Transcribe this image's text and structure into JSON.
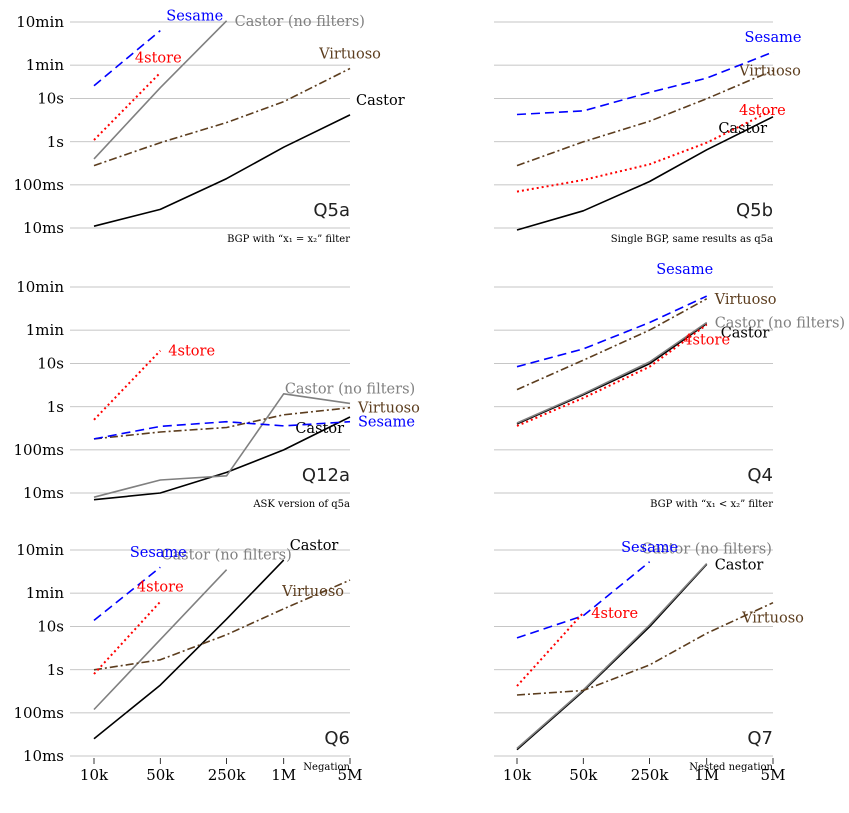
{
  "chart_data": {
    "type": "line",
    "layout": "3x2 small multiples, log-log axes",
    "x_scale": "log",
    "y_scale": "log",
    "x_values": [
      10000,
      50000,
      250000,
      1000000,
      5000000
    ],
    "x_tick_labels": [
      "10k",
      "50k",
      "250k",
      "1M",
      "5M"
    ],
    "y_tick_values_seconds": [
      0.01,
      0.1,
      1,
      10,
      60,
      600
    ],
    "y_tick_labels": [
      "10ms",
      "100ms",
      "1s",
      "10s",
      "1min",
      "10min"
    ],
    "grid": "horizontal gridlines at y ticks",
    "styles": {
      "Castor": {
        "color": "#000000",
        "dash": "solid"
      },
      "Castor (no filters)": {
        "color": "#808080",
        "dash": "solid"
      },
      "Virtuoso": {
        "color": "#5c3d1e",
        "dash": "dashdot"
      },
      "Sesame": {
        "color": "#0000ff",
        "dash": "dashed"
      },
      "4store": {
        "color": "#ff0000",
        "dash": "dotted"
      }
    },
    "panels": [
      {
        "title": "Q5a",
        "subtitle": "BGP with “x₁ = x₂” filter",
        "show_y_ticks": true,
        "show_x_ticks": false,
        "series": [
          {
            "name": "Castor",
            "y": [
              0.011,
              0.027,
              0.14,
              0.75,
              4.2
            ],
            "label_anchor": "end",
            "label_pos": "right-above"
          },
          {
            "name": "Castor (no filters)",
            "y": [
              0.4,
              18,
              640,
              null,
              null
            ],
            "label_anchor": "end",
            "label_pos": "right"
          },
          {
            "name": "Virtuoso",
            "y": [
              0.28,
              0.95,
              2.8,
              8.5,
              50
            ],
            "label_anchor": "end",
            "label_pos": "above"
          },
          {
            "name": "Sesame",
            "y": [
              20,
              380,
              null,
              null,
              null
            ],
            "label_anchor": "end",
            "label_pos": "right-above"
          },
          {
            "name": "4store",
            "y": [
              1.1,
              40,
              null,
              null,
              null
            ],
            "label_anchor": "end",
            "label_pos": "above-left"
          }
        ]
      },
      {
        "title": "Q5b",
        "subtitle": "Single BGP, same results as q5a",
        "show_y_ticks": false,
        "show_x_ticks": false,
        "series": [
          {
            "name": "Castor",
            "y": [
              0.009,
              0.025,
              0.12,
              0.65,
              3.8
            ],
            "label_anchor": "end",
            "label_pos": "below-left"
          },
          {
            "name": "Virtuoso",
            "y": [
              0.28,
              1.0,
              3.0,
              10,
              45
            ],
            "label_anchor": "end",
            "label_pos": "right"
          },
          {
            "name": "Sesame",
            "y": [
              4.3,
              5.2,
              14,
              30,
              120
            ],
            "label_anchor": "end",
            "label_pos": "above"
          },
          {
            "name": "4store",
            "y": [
              0.07,
              0.13,
              0.3,
              0.95,
              5.5
            ],
            "label_anchor": "end",
            "label_pos": "right"
          }
        ]
      },
      {
        "title": "Q12a",
        "subtitle": "ASK version of q5a",
        "show_y_ticks": true,
        "show_x_ticks": false,
        "series": [
          {
            "name": "Castor",
            "y": [
              0.007,
              0.01,
              0.03,
              0.1,
              0.58
            ],
            "label_anchor": "end",
            "label_pos": "below-left"
          },
          {
            "name": "Castor (no filters)",
            "y": [
              0.008,
              0.02,
              0.025,
              2.0,
              1.2
            ],
            "label_anchor": "end",
            "label_pos": "above"
          },
          {
            "name": "Virtuoso",
            "y": [
              0.18,
              0.26,
              0.33,
              0.65,
              0.95
            ],
            "label_anchor": "end",
            "label_pos": "right"
          },
          {
            "name": "Sesame",
            "y": [
              0.18,
              0.35,
              0.45,
              0.36,
              0.45
            ],
            "label_anchor": "end",
            "label_pos": "right"
          },
          {
            "name": "4store",
            "y": [
              0.5,
              20,
              null,
              null,
              null
            ],
            "label_anchor": "end",
            "label_pos": "right"
          }
        ]
      },
      {
        "title": "Q4",
        "subtitle": "BGP with “x₁ < x₂” filter",
        "show_y_ticks": false,
        "show_x_ticks": false,
        "series": [
          {
            "name": "Castor",
            "y": [
              0.4,
              1.9,
              10,
              85,
              null
            ],
            "label_anchor": "end",
            "label_pos": "below-right"
          },
          {
            "name": "Castor (no filters)",
            "y": [
              0.42,
              2.0,
              11,
              90,
              null
            ],
            "label_anchor": "end",
            "label_pos": "right"
          },
          {
            "name": "Virtuoso",
            "y": [
              2.5,
              12,
              60,
              320,
              null
            ],
            "label_anchor": "end",
            "label_pos": "right"
          },
          {
            "name": "Sesame",
            "y": [
              8.5,
              22,
              90,
              370,
              null
            ],
            "label_anchor": "end",
            "label_pos": "far-above-left"
          },
          {
            "name": "4store",
            "y": [
              0.36,
              1.6,
              8.5,
              80,
              null
            ],
            "label_anchor": "middle",
            "label_pos": "below"
          }
        ]
      },
      {
        "title": "Q6",
        "subtitle": "Negation",
        "show_y_ticks": true,
        "show_x_ticks": true,
        "series": [
          {
            "name": "Castor",
            "y": [
              0.025,
              0.44,
              15,
              350,
              null
            ],
            "label_anchor": "end",
            "label_pos": "right-above"
          },
          {
            "name": "Castor (no filters)",
            "y": [
              0.12,
              5,
              210,
              null,
              null
            ],
            "label_anchor": "end",
            "label_pos": "above"
          },
          {
            "name": "Virtuoso",
            "y": [
              1.0,
              1.7,
              6.5,
              26,
              120
            ],
            "label_anchor": "end",
            "label_pos": "below-left"
          },
          {
            "name": "Sesame",
            "y": [
              14,
              240,
              null,
              null,
              null
            ],
            "label_anchor": "end",
            "label_pos": "above-left"
          },
          {
            "name": "4store",
            "y": [
              0.8,
              38,
              null,
              null,
              null
            ],
            "label_anchor": "end",
            "label_pos": "above"
          }
        ]
      },
      {
        "title": "Q7",
        "subtitle": "Nested negation",
        "show_y_ticks": false,
        "show_x_ticks": true,
        "series": [
          {
            "name": "Castor",
            "y": [
              0.014,
              0.32,
              10,
              280,
              null
            ],
            "label_anchor": "end",
            "label_pos": "right"
          },
          {
            "name": "Castor (no filters)",
            "y": [
              0.015,
              0.34,
              11,
              290,
              null
            ],
            "label_anchor": "end",
            "label_pos": "above"
          },
          {
            "name": "Virtuoso",
            "y": [
              0.26,
              0.33,
              1.3,
              7,
              36
            ],
            "label_anchor": "end",
            "label_pos": "below"
          },
          {
            "name": "Sesame",
            "y": [
              5.5,
              18,
              320,
              null,
              null
            ],
            "label_anchor": "end",
            "label_pos": "above"
          },
          {
            "name": "4store",
            "y": [
              0.42,
              21,
              null,
              null,
              null
            ],
            "label_anchor": "end",
            "label_pos": "right"
          }
        ]
      }
    ]
  }
}
